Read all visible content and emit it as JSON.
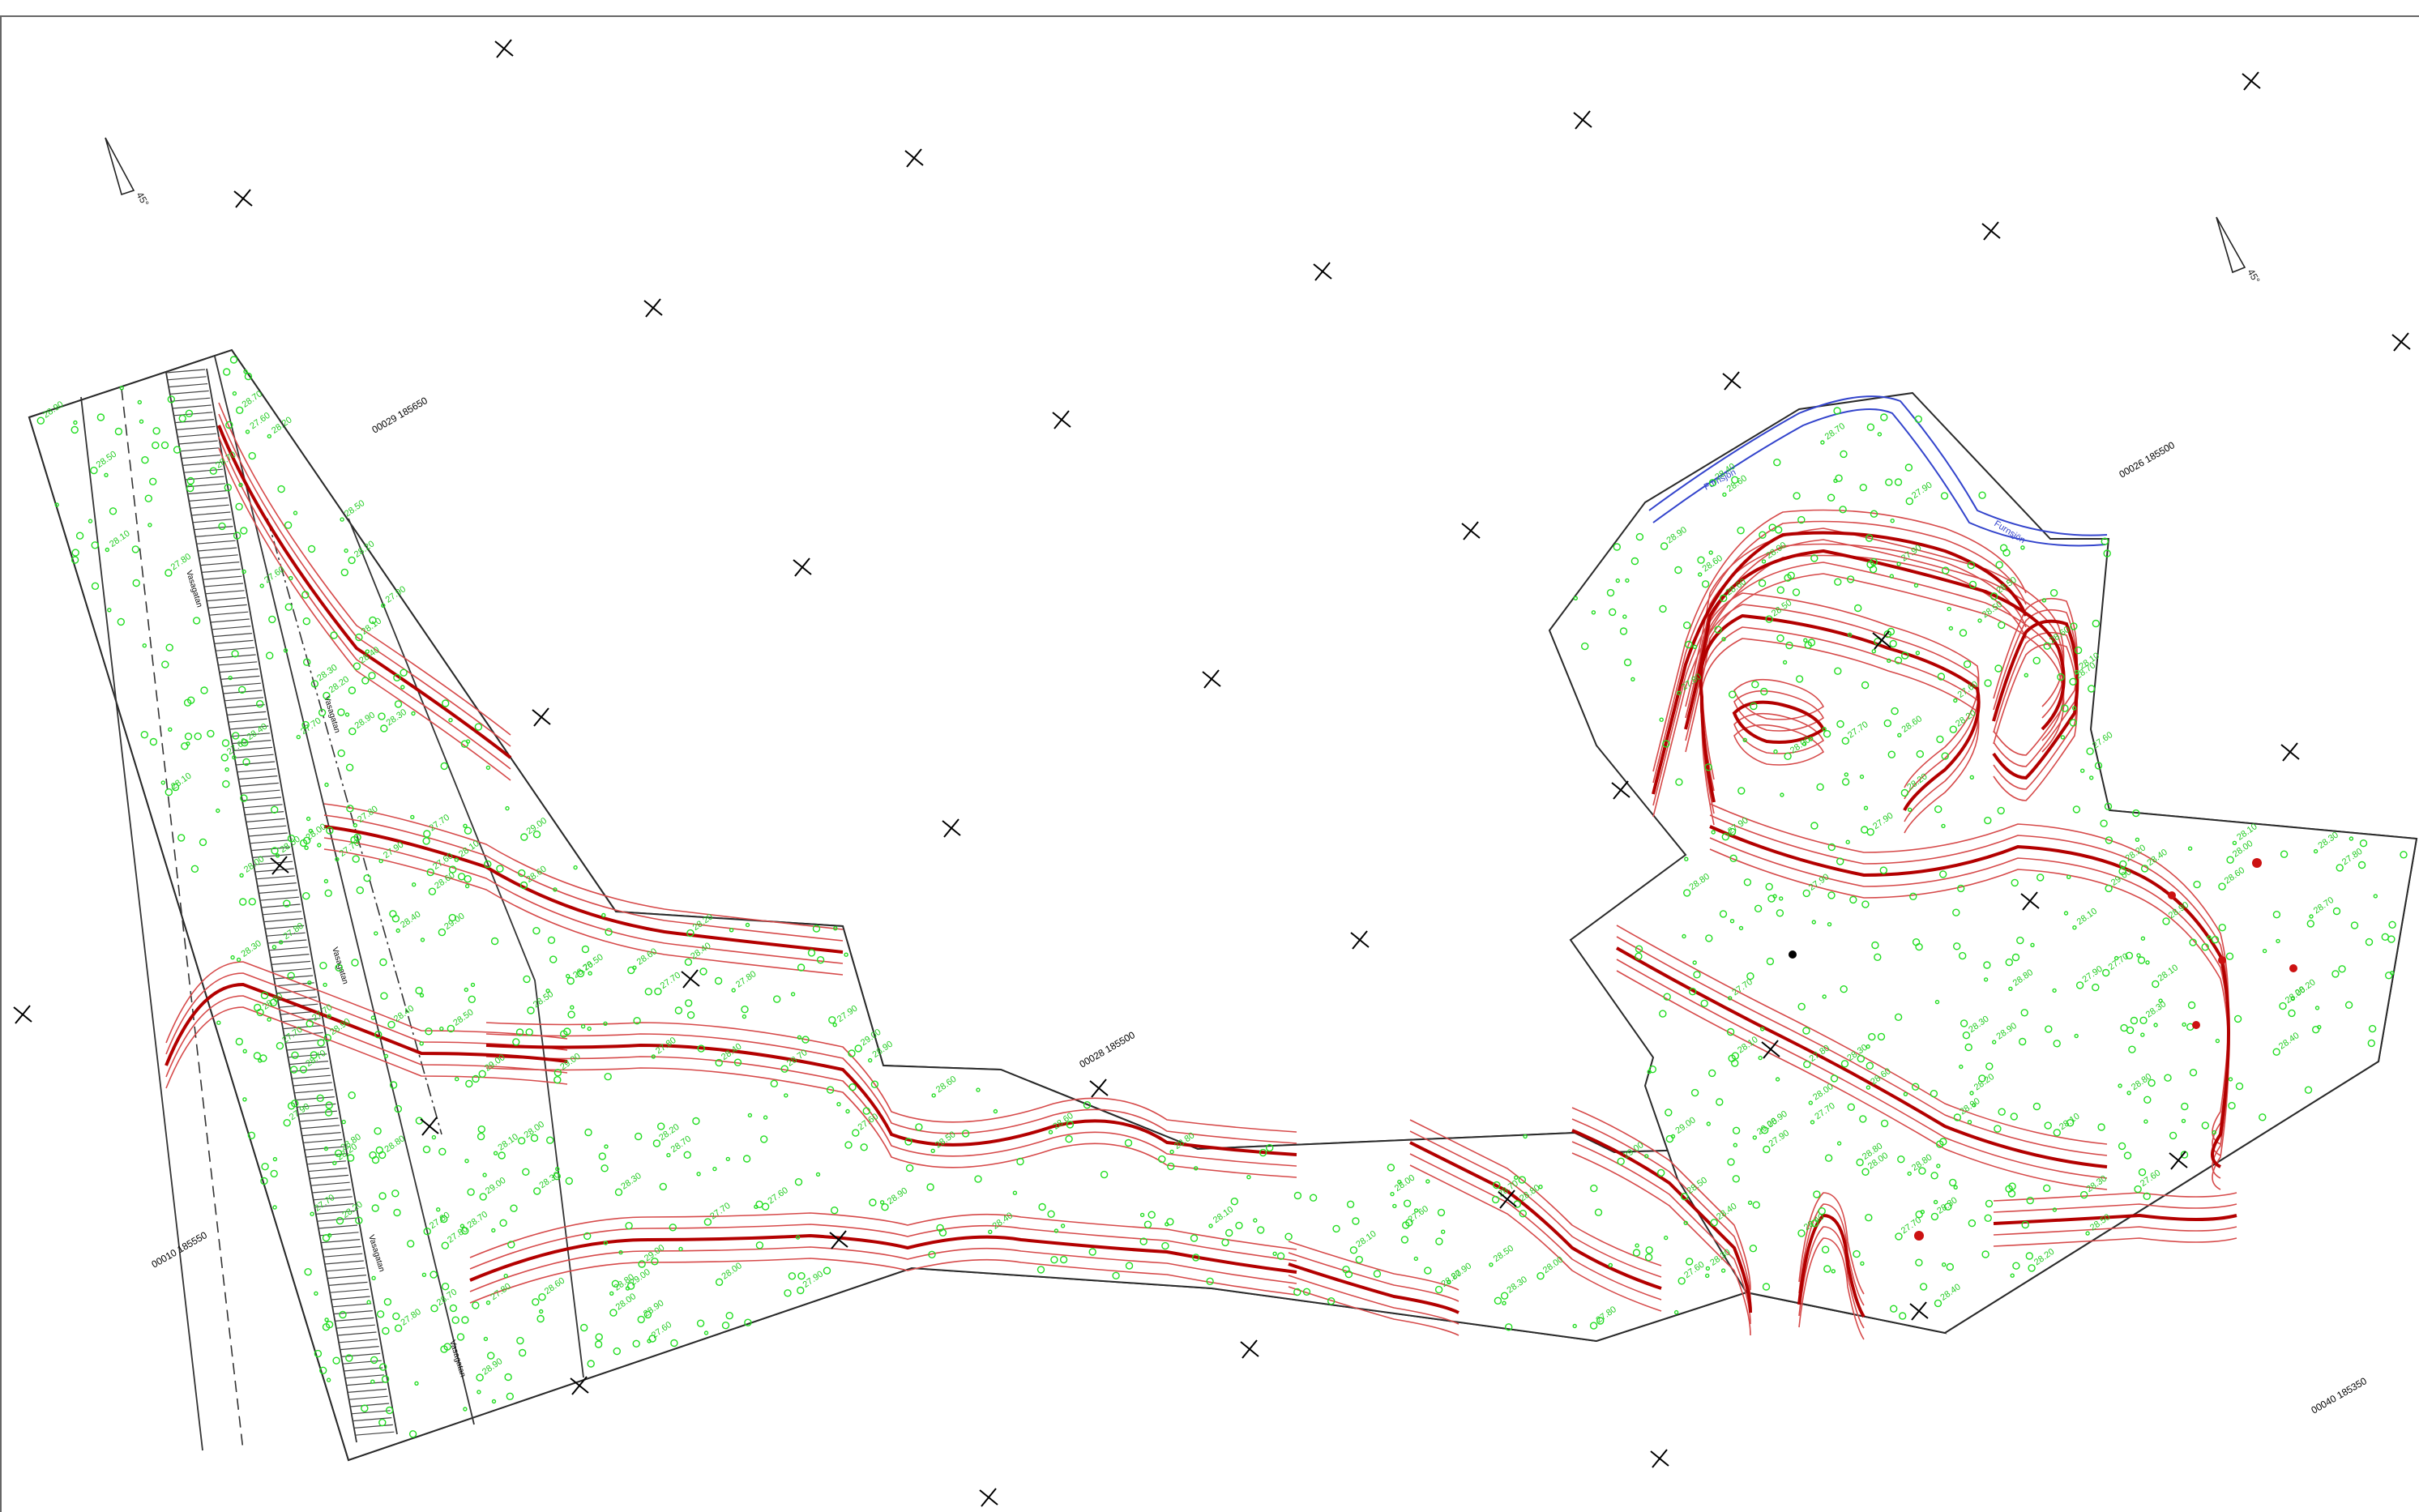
{
  "map": {
    "labels": {
      "north_left": "45°",
      "north_right": "45°",
      "grid_coords": [
        "00029 185650",
        "00026 185500",
        "00028 185500",
        "00010 185550",
        "00040 185350"
      ],
      "road_labels": [
        "Vasagatan",
        "Vasagatan",
        "Vasagatan",
        "Vasagatan",
        "Vasagatan"
      ],
      "river_labels": [
        "Furnsjön",
        "Furnsjön"
      ],
      "elevations": [
        "27.60",
        "27.70",
        "27.80",
        "27.90",
        "28.00",
        "28.10",
        "28.20",
        "28.30",
        "28.40",
        "28.50",
        "28.60",
        "28.70",
        "28.80",
        "28.90",
        "29.00"
      ]
    },
    "colors": {
      "contour": "#d64a4a",
      "index_contour": "#b30000",
      "points": "#22dd22",
      "water": "#3344cc",
      "boundary": "#2a2a2a"
    },
    "icons": [
      "grid-cross-icon",
      "north-arrow-icon",
      "survey-point-icon"
    ]
  }
}
